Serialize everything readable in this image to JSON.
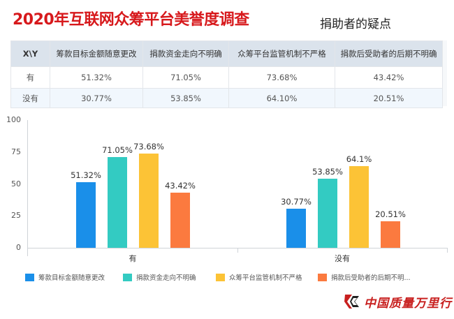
{
  "header": {
    "title": "2020年互联网众筹平台美誉度调查",
    "subtitle": "捐助者的疑点"
  },
  "table": {
    "corner": "X\\Y",
    "columns": [
      "筹款目标金额随意更改",
      "捐款资金走向不明确",
      "众筹平台监管机制不严格",
      "捐款后受助者的后期不明确"
    ],
    "rows": [
      {
        "label": "有",
        "values": [
          "51.32%",
          "71.05%",
          "73.68%",
          "43.42%"
        ]
      },
      {
        "label": "没有",
        "values": [
          "30.77%",
          "53.85%",
          "64.10%",
          "20.51%"
        ]
      }
    ]
  },
  "chart_data": {
    "type": "bar",
    "title": "",
    "xlabel": "",
    "ylabel": "",
    "ylim": [
      0,
      100
    ],
    "yticks": [
      "100",
      "75",
      "50",
      "25",
      "0"
    ],
    "categories": [
      "有",
      "没有"
    ],
    "series": [
      {
        "name": "筹款目标金额随意更改",
        "color": "#1a8fe9",
        "values": [
          51.32,
          30.77
        ],
        "labels": [
          "51.32%",
          "30.77%"
        ]
      },
      {
        "name": "捐款资金走向不明确",
        "color": "#33cbc2",
        "values": [
          71.05,
          53.85
        ],
        "labels": [
          "71.05%",
          "53.85%"
        ]
      },
      {
        "name": "众筹平台监管机制不严格",
        "color": "#fcc336",
        "values": [
          73.68,
          64.1
        ],
        "labels": [
          "73.68%",
          "64.1%"
        ]
      },
      {
        "name": "捐款后受助者的后期不明确",
        "color": "#fb7a3f",
        "values": [
          43.42,
          20.51
        ],
        "labels": [
          "43.42%",
          "20.51%"
        ]
      }
    ],
    "legend": {
      "position": "bottom",
      "entries": [
        "筹款目标金额随意更改",
        "捐款资金走向不明确",
        "众筹平台监管机制不严格",
        "捐款后受助者的后期不明..."
      ]
    },
    "grid": false
  },
  "logo": {
    "text": "中国质量万里行",
    "icon": "k-chevron-logo-icon"
  }
}
